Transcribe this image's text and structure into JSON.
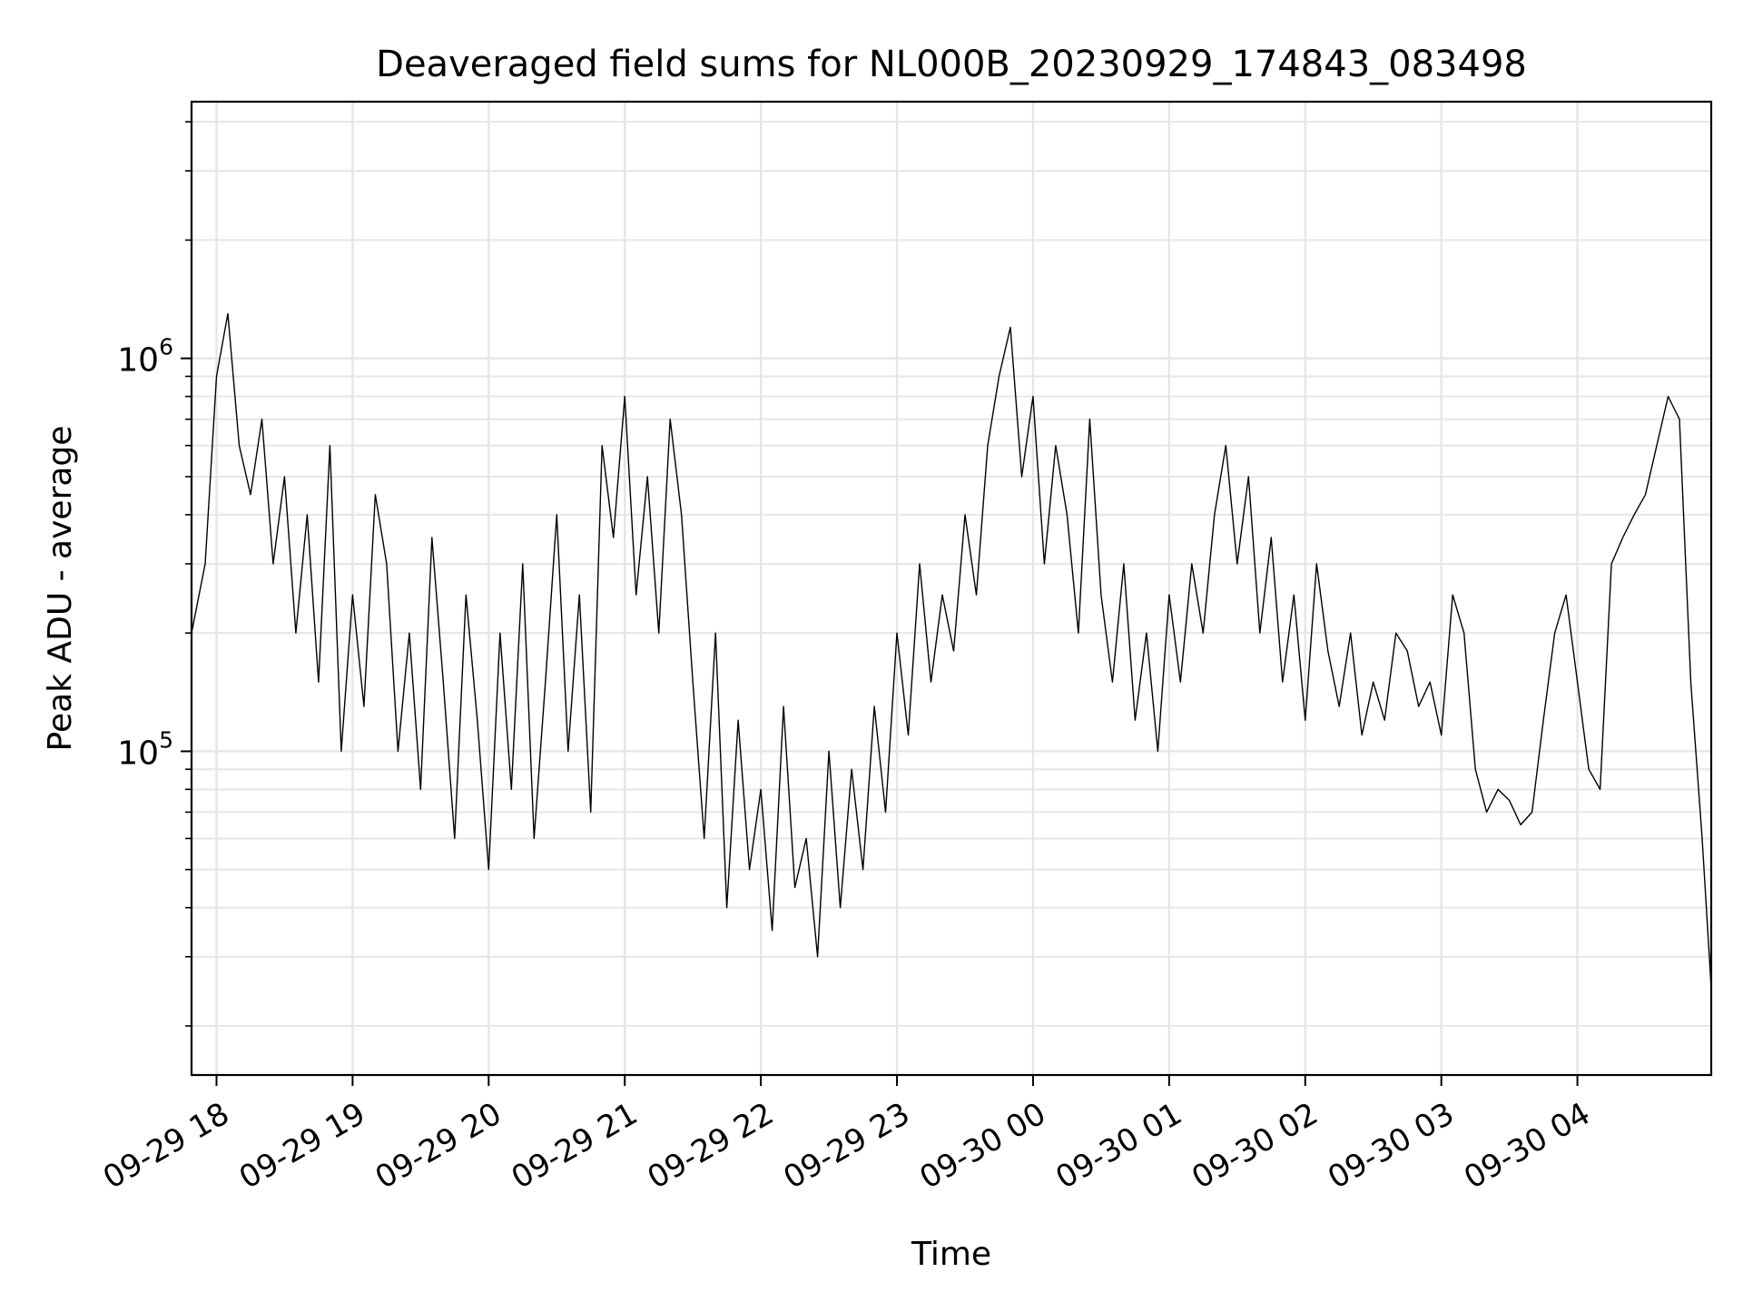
{
  "chart_data": {
    "type": "line",
    "title": "Deaveraged field sums for NL000B_20230929_174843_083498",
    "xlabel": "Time",
    "ylabel": "Peak ADU - average",
    "y_scale": "log",
    "ylim": [
      15000,
      4500000
    ],
    "xlim": [
      "2023-09-29 17:49",
      "2023-09-30 04:59"
    ],
    "y_tick_labels": [
      {
        "value": 100000,
        "base": "10",
        "exp": "5"
      },
      {
        "value": 1000000,
        "base": "10",
        "exp": "6"
      }
    ],
    "x_tick_labels": [
      {
        "time": "2023-09-29 18:00",
        "label": "09-29 18"
      },
      {
        "time": "2023-09-29 19:00",
        "label": "09-29 19"
      },
      {
        "time": "2023-09-29 20:00",
        "label": "09-29 20"
      },
      {
        "time": "2023-09-29 21:00",
        "label": "09-29 21"
      },
      {
        "time": "2023-09-29 22:00",
        "label": "09-29 22"
      },
      {
        "time": "2023-09-29 23:00",
        "label": "09-29 23"
      },
      {
        "time": "2023-09-30 00:00",
        "label": "09-30 00"
      },
      {
        "time": "2023-09-30 01:00",
        "label": "09-30 01"
      },
      {
        "time": "2023-09-30 02:00",
        "label": "09-30 02"
      },
      {
        "time": "2023-09-30 03:00",
        "label": "09-30 03"
      },
      {
        "time": "2023-09-30 04:00",
        "label": "09-30 04"
      }
    ],
    "grid": true,
    "line_color": "#000000",
    "grid_color": "#e6e6e6",
    "series": [
      {
        "x": [
          "2023-09-29 17:49",
          "2023-09-29 17:55",
          "2023-09-29 18:00",
          "2023-09-29 18:05",
          "2023-09-29 18:10",
          "2023-09-29 18:15",
          "2023-09-29 18:20",
          "2023-09-29 18:25",
          "2023-09-29 18:30",
          "2023-09-29 18:35",
          "2023-09-29 18:40",
          "2023-09-29 18:45",
          "2023-09-29 18:50",
          "2023-09-29 18:55",
          "2023-09-29 19:00",
          "2023-09-29 19:05",
          "2023-09-29 19:10",
          "2023-09-29 19:15",
          "2023-09-29 19:20",
          "2023-09-29 19:25",
          "2023-09-29 19:30",
          "2023-09-29 19:35",
          "2023-09-29 19:40",
          "2023-09-29 19:45",
          "2023-09-29 19:50",
          "2023-09-29 19:55",
          "2023-09-29 20:00",
          "2023-09-29 20:05",
          "2023-09-29 20:10",
          "2023-09-29 20:15",
          "2023-09-29 20:20",
          "2023-09-29 20:25",
          "2023-09-29 20:30",
          "2023-09-29 20:35",
          "2023-09-29 20:40",
          "2023-09-29 20:45",
          "2023-09-29 20:50",
          "2023-09-29 20:55",
          "2023-09-29 21:00",
          "2023-09-29 21:05",
          "2023-09-29 21:10",
          "2023-09-29 21:15",
          "2023-09-29 21:20",
          "2023-09-29 21:25",
          "2023-09-29 21:30",
          "2023-09-29 21:35",
          "2023-09-29 21:40",
          "2023-09-29 21:45",
          "2023-09-29 21:50",
          "2023-09-29 21:55",
          "2023-09-29 22:00",
          "2023-09-29 22:05",
          "2023-09-29 22:10",
          "2023-09-29 22:15",
          "2023-09-29 22:20",
          "2023-09-29 22:25",
          "2023-09-29 22:30",
          "2023-09-29 22:35",
          "2023-09-29 22:40",
          "2023-09-29 22:45",
          "2023-09-29 22:50",
          "2023-09-29 22:55",
          "2023-09-29 23:00",
          "2023-09-29 23:05",
          "2023-09-29 23:10",
          "2023-09-29 23:15",
          "2023-09-29 23:20",
          "2023-09-29 23:25",
          "2023-09-29 23:30",
          "2023-09-29 23:35",
          "2023-09-29 23:40",
          "2023-09-29 23:45",
          "2023-09-29 23:50",
          "2023-09-29 23:55",
          "2023-09-30 00:00",
          "2023-09-30 00:05",
          "2023-09-30 00:10",
          "2023-09-30 00:15",
          "2023-09-30 00:20",
          "2023-09-30 00:25",
          "2023-09-30 00:30",
          "2023-09-30 00:35",
          "2023-09-30 00:40",
          "2023-09-30 00:45",
          "2023-09-30 00:50",
          "2023-09-30 00:55",
          "2023-09-30 01:00",
          "2023-09-30 01:05",
          "2023-09-30 01:10",
          "2023-09-30 01:15",
          "2023-09-30 01:20",
          "2023-09-30 01:25",
          "2023-09-30 01:30",
          "2023-09-30 01:35",
          "2023-09-30 01:40",
          "2023-09-30 01:45",
          "2023-09-30 01:50",
          "2023-09-30 01:55",
          "2023-09-30 02:00",
          "2023-09-30 02:05",
          "2023-09-30 02:10",
          "2023-09-30 02:15",
          "2023-09-30 02:20",
          "2023-09-30 02:25",
          "2023-09-30 02:30",
          "2023-09-30 02:35",
          "2023-09-30 02:40",
          "2023-09-30 02:45",
          "2023-09-30 02:50",
          "2023-09-30 02:55",
          "2023-09-30 03:00",
          "2023-09-30 03:05",
          "2023-09-30 03:10",
          "2023-09-30 03:15",
          "2023-09-30 03:20",
          "2023-09-30 03:25",
          "2023-09-30 03:30",
          "2023-09-30 03:35",
          "2023-09-30 03:40",
          "2023-09-30 03:45",
          "2023-09-30 03:50",
          "2023-09-30 03:55",
          "2023-09-30 04:00",
          "2023-09-30 04:05",
          "2023-09-30 04:10",
          "2023-09-30 04:15",
          "2023-09-30 04:20",
          "2023-09-30 04:25",
          "2023-09-30 04:30",
          "2023-09-30 04:35",
          "2023-09-30 04:40",
          "2023-09-30 04:45",
          "2023-09-30 04:50",
          "2023-09-30 04:55",
          "2023-09-30 04:59"
        ],
        "y": [
          200000,
          300000,
          900000,
          1300000,
          600000,
          450000,
          700000,
          300000,
          500000,
          200000,
          400000,
          150000,
          600000,
          100000,
          250000,
          130000,
          450000,
          300000,
          100000,
          200000,
          80000,
          350000,
          150000,
          60000,
          250000,
          120000,
          50000,
          200000,
          80000,
          300000,
          60000,
          150000,
          400000,
          100000,
          250000,
          70000,
          600000,
          350000,
          800000,
          250000,
          500000,
          200000,
          700000,
          400000,
          150000,
          60000,
          200000,
          40000,
          120000,
          50000,
          80000,
          35000,
          130000,
          45000,
          60000,
          30000,
          100000,
          40000,
          90000,
          50000,
          130000,
          70000,
          200000,
          110000,
          300000,
          150000,
          250000,
          180000,
          400000,
          250000,
          600000,
          900000,
          1200000,
          500000,
          800000,
          300000,
          600000,
          400000,
          200000,
          700000,
          250000,
          150000,
          300000,
          120000,
          200000,
          100000,
          250000,
          150000,
          300000,
          200000,
          400000,
          600000,
          300000,
          500000,
          200000,
          350000,
          150000,
          250000,
          120000,
          300000,
          180000,
          130000,
          200000,
          110000,
          150000,
          120000,
          200000,
          180000,
          130000,
          150000,
          110000,
          250000,
          200000,
          90000,
          70000,
          80000,
          75000,
          65000,
          70000,
          120000,
          200000,
          250000,
          150000,
          90000,
          80000,
          300000,
          350000,
          400000,
          450000,
          600000,
          800000,
          700000,
          150000,
          60000,
          25000
        ]
      }
    ]
  }
}
